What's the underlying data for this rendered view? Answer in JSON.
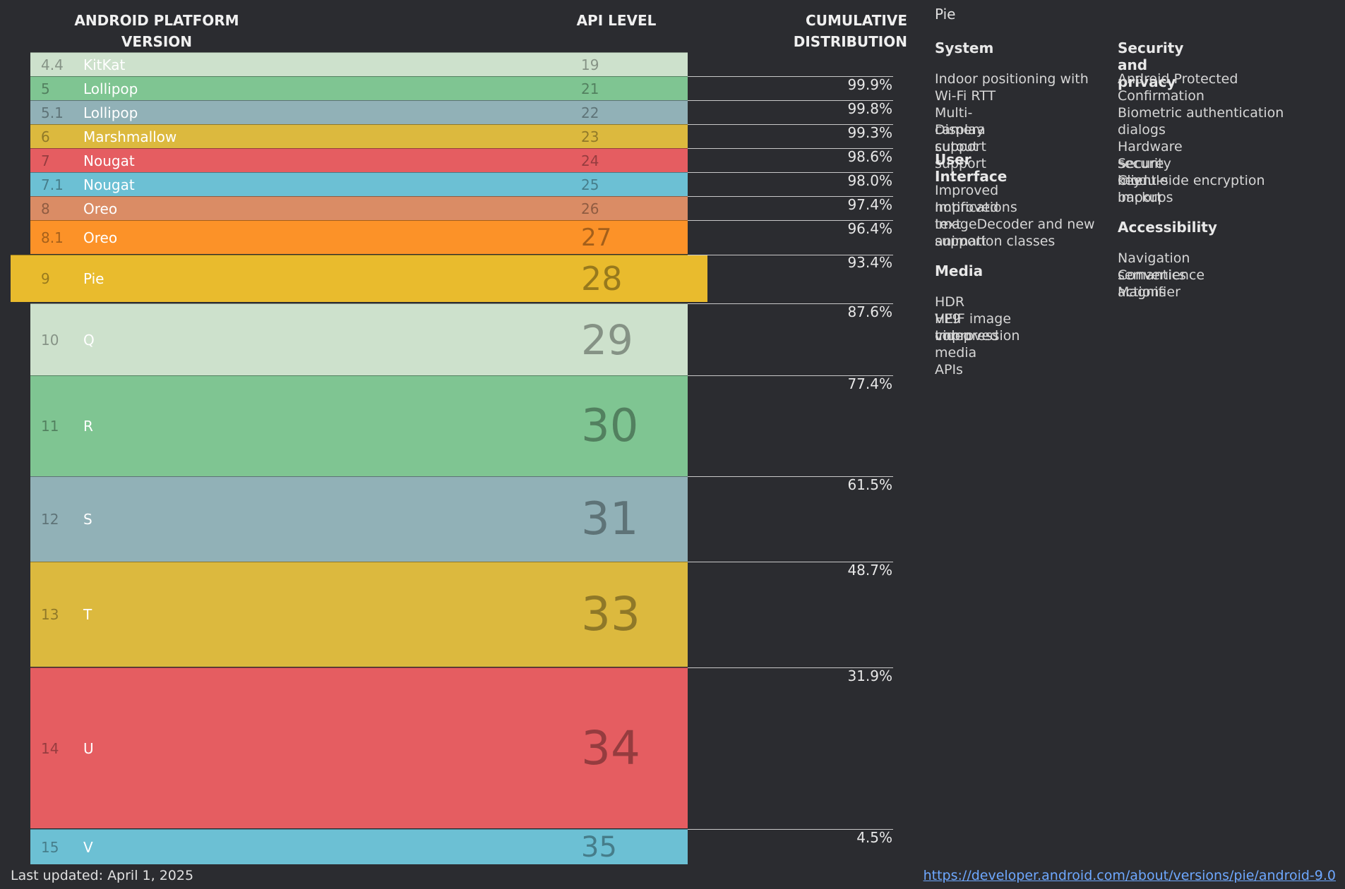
{
  "headers": {
    "version": "ANDROID PLATFORM VERSION",
    "api": "API LEVEL",
    "cumulative": "CUMULATIVE DISTRIBUTION"
  },
  "rows": [
    {
      "version": "4.4",
      "name": "KitKat",
      "api": "19",
      "cumulative": "",
      "color": "#cde1cc"
    },
    {
      "version": "5",
      "name": "Lollipop",
      "api": "21",
      "cumulative": "99.9%",
      "color": "#7fc592"
    },
    {
      "version": "5.1",
      "name": "Lollipop",
      "api": "22",
      "cumulative": "99.8%",
      "color": "#91b1b7"
    },
    {
      "version": "6",
      "name": "Marshmallow",
      "api": "23",
      "cumulative": "99.3%",
      "color": "#dcb93e"
    },
    {
      "version": "7",
      "name": "Nougat",
      "api": "24",
      "cumulative": "98.6%",
      "color": "#e55d61"
    },
    {
      "version": "7.1",
      "name": "Nougat",
      "api": "25",
      "cumulative": "98.0%",
      "color": "#6cc0d4"
    },
    {
      "version": "8",
      "name": "Oreo",
      "api": "26",
      "cumulative": "97.4%",
      "color": "#da8c65"
    },
    {
      "version": "8.1",
      "name": "Oreo",
      "api": "27",
      "cumulative": "96.4%",
      "color": "#fc9228"
    },
    {
      "version": "9",
      "name": "Pie",
      "api": "28",
      "cumulative": "93.4%",
      "color": "#e9bb2d"
    },
    {
      "version": "10",
      "name": "Q",
      "api": "29",
      "cumulative": "87.6%",
      "color": "#cde1cc"
    },
    {
      "version": "11",
      "name": "R",
      "api": "30",
      "cumulative": "77.4%",
      "color": "#7fc592"
    },
    {
      "version": "12",
      "name": "S",
      "api": "31",
      "cumulative": "61.5%",
      "color": "#91b1b7"
    },
    {
      "version": "13",
      "name": "T",
      "api": "33",
      "cumulative": "48.7%",
      "color": "#dcb93e"
    },
    {
      "version": "14",
      "name": "U",
      "api": "34",
      "cumulative": "31.9%",
      "color": "#e55d61"
    },
    {
      "version": "15",
      "name": "V",
      "api": "35",
      "cumulative": "4.5%",
      "color": "#6cc0d4"
    }
  ],
  "panel": {
    "title": "Pie",
    "sections": [
      {
        "heading": "System",
        "items": [
          "Indoor positioning with Wi-Fi RTT",
          "Multi-camera support",
          "Display cutout support"
        ]
      },
      {
        "heading": "User Interface",
        "items": [
          "Improved notifications",
          "Improved text support",
          "ImageDecoder and new animation classes"
        ]
      },
      {
        "heading": "Media",
        "items": [
          "HDR VP9 video",
          "HEIF image compression",
          "Improved media APIs"
        ]
      },
      {
        "heading": "Security and privacy",
        "items": [
          "Android Protected Confirmation",
          "Biometric authentication dialogs",
          "Hardware security module",
          "Secure key import",
          "Client-side encryption backups"
        ]
      },
      {
        "heading": "Accessibility",
        "items": [
          "Navigation semantics",
          "Convenience actions",
          "Magnifier"
        ]
      }
    ]
  },
  "footer": {
    "updated": "Last updated: April 1, 2025",
    "link": "https://developer.android.com/about/versions/pie/android-9.0"
  }
}
